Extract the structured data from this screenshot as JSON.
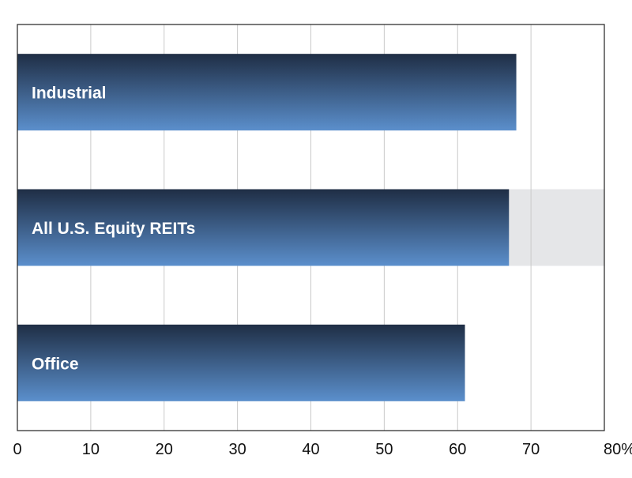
{
  "chart_data": {
    "type": "bar",
    "orientation": "horizontal",
    "categories": [
      "Industrial",
      "All U.S. Equity REITs",
      "Office"
    ],
    "values": [
      68,
      67,
      61
    ],
    "highlighted_category": "All U.S. Equity REITs",
    "xlim": [
      0,
      80
    ],
    "xticks": [
      "0",
      "10",
      "20",
      "30",
      "40",
      "50",
      "60",
      "70",
      "80%"
    ],
    "grid": true,
    "title": "",
    "xlabel": "",
    "ylabel": ""
  },
  "colors": {
    "bar_top": "#1f2e45",
    "bar_bottom": "#5b8fcc",
    "highlight_band": "#e5e6e8",
    "grid": "#c9c9c9",
    "frame": "#222222"
  }
}
